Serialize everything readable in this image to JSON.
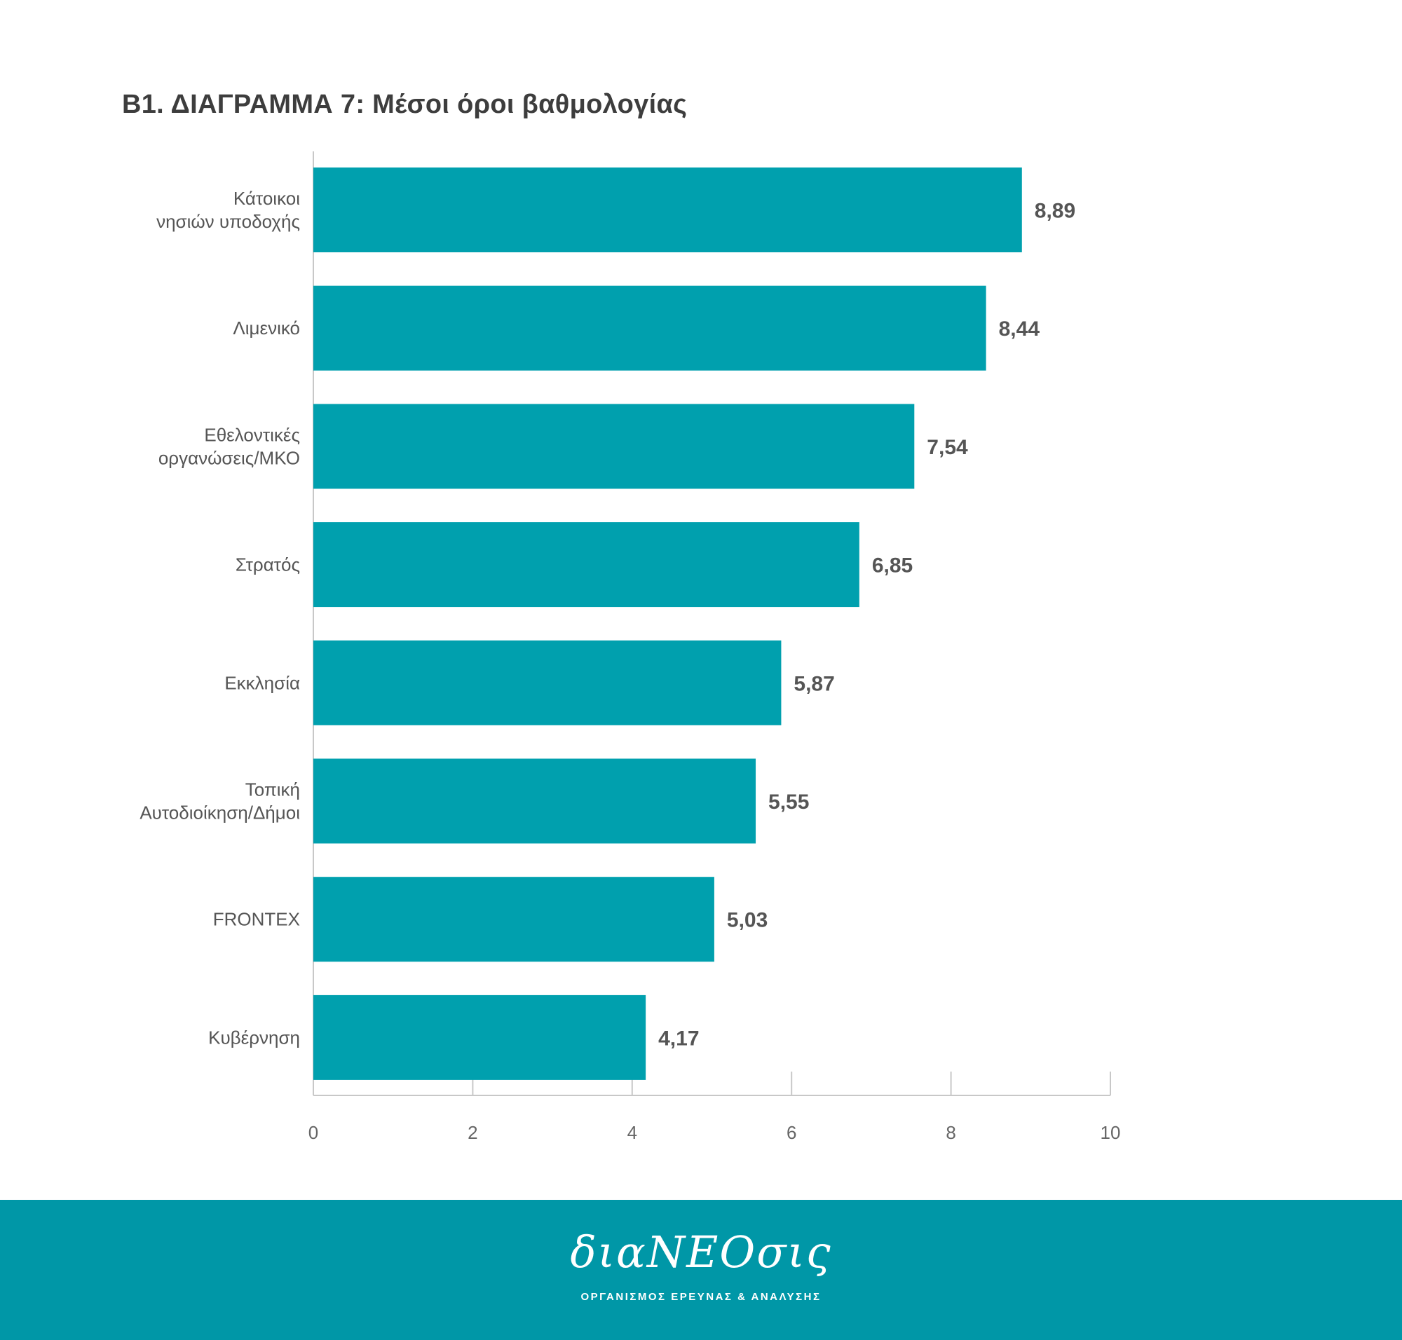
{
  "title": "Β1. ΔΙΑΓΡΑΜΜΑ 7: Μέσοι όροι βαθμολογίας",
  "chart_data": {
    "type": "bar",
    "orientation": "horizontal",
    "categories": [
      [
        "Κάτοικοι",
        "νησιών υποδοχής"
      ],
      [
        "Λιμενικό"
      ],
      [
        "Εθελοντικές",
        "οργανώσεις/ΜΚΟ"
      ],
      [
        "Στρατός"
      ],
      [
        "Εκκλησία"
      ],
      [
        "Τοπική",
        "Αυτοδιοίκηση/Δήμοι"
      ],
      [
        "FRONTEX"
      ],
      [
        "Κυβέρνηση"
      ]
    ],
    "values": [
      8.89,
      8.44,
      7.54,
      6.85,
      5.87,
      5.55,
      5.03,
      4.17
    ],
    "value_labels": [
      "8,89",
      "8,44",
      "7,54",
      "6,85",
      "5,87",
      "5,55",
      "5,03",
      "4,17"
    ],
    "xlim": [
      0,
      10
    ],
    "xticks": [
      0,
      2,
      4,
      6,
      8,
      10
    ],
    "grid": false,
    "colors": {
      "bar": "#00a0ae",
      "axis": "#c8c8c8"
    }
  },
  "footer": {
    "logo_text": "διαΝΕΟσις",
    "tagline": "ΟΡΓΑΝΙΣΜΟΣ ΕΡΕΥΝΑΣ & ΑΝΑΛΥΣΗΣ",
    "background": "#0097a7"
  }
}
